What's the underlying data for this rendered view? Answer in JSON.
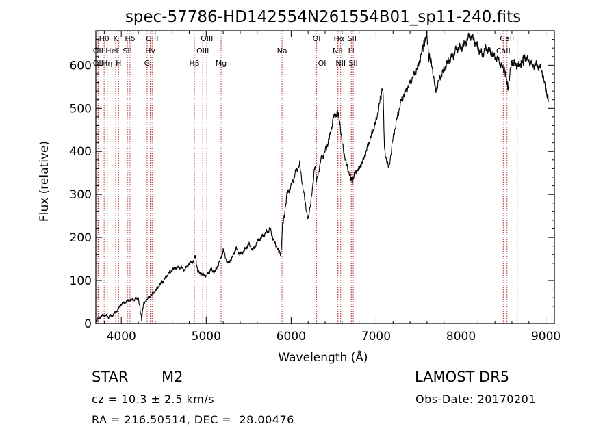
{
  "chart_data": {
    "type": "line",
    "title": "spec-57786-HD142554N261554B01_sp11-240.fits",
    "xlabel": "Wavelength (Å)",
    "ylabel": "Flux (relative)",
    "xlim": [
      3700,
      9100
    ],
    "ylim": [
      0,
      680
    ],
    "xticks": [
      4000,
      5000,
      6000,
      7000,
      8000,
      9000
    ],
    "yticks": [
      0,
      100,
      200,
      300,
      400,
      500,
      600
    ],
    "grid": false,
    "line_color": "#000000",
    "marker_color": "#b22222",
    "series": [
      {
        "x": [
          3700,
          3750,
          3800,
          3850,
          3900,
          3950,
          4000,
          4050,
          4100,
          4150,
          4200,
          4240,
          4260,
          4300,
          4350,
          4400,
          4450,
          4500,
          4550,
          4600,
          4650,
          4700,
          4750,
          4800,
          4850,
          4870,
          4900,
          4950,
          5000,
          5050,
          5100,
          5150,
          5200,
          5250,
          5300,
          5350,
          5400,
          5450,
          5500,
          5550,
          5600,
          5650,
          5700,
          5750,
          5800,
          5850,
          5880,
          5900,
          5920,
          5950,
          6000,
          6050,
          6100,
          6150,
          6200,
          6250,
          6280,
          6300,
          6350,
          6400,
          6450,
          6500,
          6550,
          6570,
          6600,
          6650,
          6700,
          6720,
          6750,
          6800,
          6850,
          6900,
          6950,
          7000,
          7050,
          7080,
          7100,
          7150,
          7200,
          7250,
          7300,
          7350,
          7400,
          7450,
          7500,
          7550,
          7580,
          7600,
          7620,
          7650,
          7700,
          7750,
          7800,
          7850,
          7900,
          7950,
          8000,
          8050,
          8100,
          8150,
          8200,
          8250,
          8300,
          8350,
          8400,
          8450,
          8500,
          8530,
          8550,
          8600,
          8650,
          8700,
          8750,
          8800,
          8850,
          8900,
          8950,
          9000,
          9030
        ],
        "y": [
          5,
          15,
          20,
          15,
          20,
          30,
          45,
          50,
          55,
          55,
          60,
          10,
          45,
          55,
          65,
          75,
          90,
          100,
          115,
          125,
          130,
          130,
          125,
          140,
          145,
          160,
          120,
          115,
          110,
          125,
          120,
          140,
          170,
          140,
          150,
          175,
          160,
          170,
          185,
          170,
          190,
          200,
          210,
          220,
          190,
          170,
          160,
          230,
          250,
          300,
          320,
          350,
          370,
          300,
          240,
          310,
          370,
          330,
          380,
          400,
          430,
          480,
          490,
          470,
          420,
          370,
          340,
          330,
          350,
          360,
          380,
          410,
          440,
          470,
          520,
          550,
          400,
          360,
          430,
          480,
          520,
          540,
          560,
          580,
          600,
          640,
          660,
          670,
          620,
          610,
          540,
          570,
          590,
          610,
          620,
          640,
          640,
          650,
          670,
          660,
          640,
          625,
          640,
          630,
          620,
          610,
          590,
          580,
          545,
          610,
          600,
          600,
          620,
          610,
          600,
          600,
          590,
          540,
          520
        ]
      }
    ],
    "lines": [
      {
        "label": "Hθ",
        "x": 3798,
        "row": 0
      },
      {
        "label": "K",
        "x": 3934,
        "row": 0
      },
      {
        "label": "Hδ",
        "x": 4102,
        "row": 0
      },
      {
        "label": "OIII",
        "x": 4363,
        "row": 0
      },
      {
        "label": "OIII",
        "x": 5007,
        "row": 0
      },
      {
        "label": "OI",
        "x": 6300,
        "row": 0
      },
      {
        "label": "Hα",
        "x": 6563,
        "row": 0
      },
      {
        "label": "SII",
        "x": 6717,
        "row": 0
      },
      {
        "label": "CaII",
        "x": 8542,
        "row": 0
      },
      {
        "label": "OII",
        "x": 3727,
        "row": 1
      },
      {
        "label": "HeI",
        "x": 3889,
        "row": 1
      },
      {
        "label": "SII",
        "x": 4072,
        "row": 1
      },
      {
        "label": "Hγ",
        "x": 4341,
        "row": 1
      },
      {
        "label": "OIII",
        "x": 4959,
        "row": 1
      },
      {
        "label": "Na",
        "x": 5893,
        "row": 1
      },
      {
        "label": "NII",
        "x": 6548,
        "row": 1
      },
      {
        "label": "Li",
        "x": 6708,
        "row": 1
      },
      {
        "label": "CaII",
        "x": 8498,
        "row": 1
      },
      {
        "label": "OII",
        "x": 3727,
        "row": 2
      },
      {
        "label": "Hη",
        "x": 3835,
        "row": 2
      },
      {
        "label": "H",
        "x": 3968,
        "row": 2
      },
      {
        "label": "G",
        "x": 4304,
        "row": 2
      },
      {
        "label": "Hβ",
        "x": 4861,
        "row": 2
      },
      {
        "label": "Mg",
        "x": 5175,
        "row": 2
      },
      {
        "label": "OI",
        "x": 6364,
        "row": 2
      },
      {
        "label": "NII",
        "x": 6583,
        "row": 2
      },
      {
        "label": "SII",
        "x": 6731,
        "row": 2
      },
      {
        "label": "CaII",
        "x": 8662,
        "row": 2
      }
    ]
  },
  "info": {
    "object_class": "STAR",
    "subclass": "M2",
    "survey": "LAMOST DR5",
    "cz": "cz = 10.3 ± 2.5 km/s",
    "obs_date": "Obs-Date: 20170201",
    "coords": "RA = 216.50514, DEC =  28.00476"
  }
}
